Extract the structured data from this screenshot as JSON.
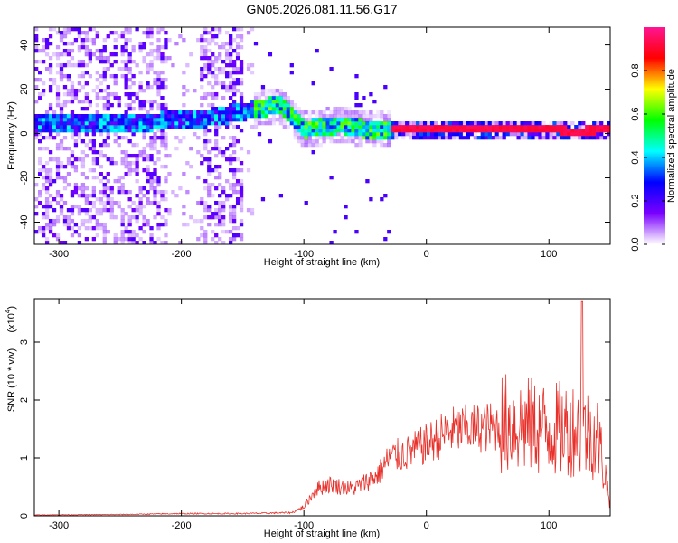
{
  "title": "GN05.2026.081.11.56.G17",
  "chart_data": [
    {
      "type": "heatmap",
      "xlabel": "Height of straight line (km)",
      "ylabel": "Frequency (Hz)",
      "xlim": [
        -320,
        150
      ],
      "ylim": [
        -50,
        48
      ],
      "x_ticks": [
        -300,
        -200,
        -100,
        0,
        100
      ],
      "y_ticks": [
        -40,
        -20,
        0,
        20,
        40
      ],
      "colorbar": {
        "label": "Normalized spectral amplitude",
        "range": [
          0.0,
          1.0
        ],
        "ticks": [
          0.0,
          0.2,
          0.4,
          0.6,
          0.8
        ],
        "colors": [
          "#ffffff",
          "#7a00ff",
          "#0000ff",
          "#00ffff",
          "#00ff00",
          "#ffff00",
          "#ff0000",
          "#ff1493"
        ]
      },
      "ridge": [
        {
          "x": -290,
          "y": 4
        },
        {
          "x": -240,
          "y": 5
        },
        {
          "x": -205,
          "y": 6
        },
        {
          "x": -180,
          "y": 7
        },
        {
          "x": -140,
          "y": 11
        },
        {
          "x": -120,
          "y": 13
        },
        {
          "x": -100,
          "y": 2
        },
        {
          "x": -70,
          "y": 4
        },
        {
          "x": -50,
          "y": 2
        },
        {
          "x": -30,
          "y": 2
        },
        {
          "x": 0,
          "y": 2
        },
        {
          "x": 50,
          "y": 2
        },
        {
          "x": 100,
          "y": 2
        },
        {
          "x": 120,
          "y": 1
        },
        {
          "x": 150,
          "y": 2
        }
      ]
    },
    {
      "type": "line",
      "xlabel": "Height of straight line (km)",
      "ylabel": "SNR (10 * v/v)",
      "y_scale_note": "(x10",
      "y_scale_exp": "4",
      "xlim": [
        -320,
        150
      ],
      "ylim": [
        0,
        3.75
      ],
      "x_ticks": [
        -300,
        -200,
        -100,
        0,
        100
      ],
      "y_ticks": [
        0,
        1,
        2,
        3
      ],
      "series": [
        {
          "color": "#e8302a",
          "envelope": [
            {
              "x": -320,
              "y": 0.02
            },
            {
              "x": -250,
              "y": 0.03
            },
            {
              "x": -200,
              "y": 0.05
            },
            {
              "x": -150,
              "y": 0.05
            },
            {
              "x": -110,
              "y": 0.07
            },
            {
              "x": -100,
              "y": 0.2
            },
            {
              "x": -90,
              "y": 0.6
            },
            {
              "x": -80,
              "y": 0.7
            },
            {
              "x": -60,
              "y": 0.6
            },
            {
              "x": -40,
              "y": 0.9
            },
            {
              "x": -30,
              "y": 1.3
            },
            {
              "x": -15,
              "y": 1.4
            },
            {
              "x": 0,
              "y": 1.6
            },
            {
              "x": 20,
              "y": 1.9
            },
            {
              "x": 40,
              "y": 1.95
            },
            {
              "x": 60,
              "y": 2.0
            },
            {
              "x": 80,
              "y": 1.95
            },
            {
              "x": 100,
              "y": 1.85
            },
            {
              "x": 120,
              "y": 1.9
            },
            {
              "x": 140,
              "y": 1.7
            },
            {
              "x": 150,
              "y": 0.3
            }
          ],
          "peak": {
            "x": 127,
            "y": 3.7
          }
        }
      ]
    }
  ]
}
